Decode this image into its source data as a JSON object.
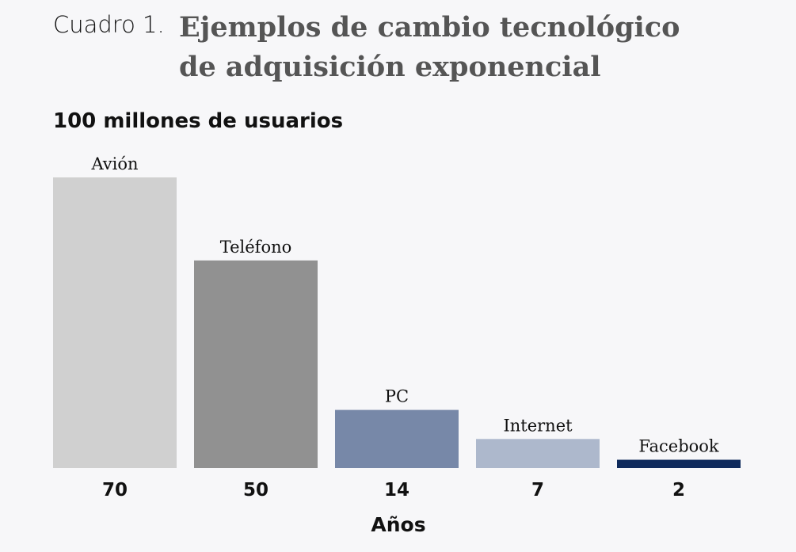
{
  "header": {
    "prefix": "Cuadro 1.",
    "title_line1": "Ejemplos de cambio tecnológico",
    "title_line2": "de adquisición exponencial"
  },
  "chart_data": {
    "type": "bar",
    "title": "Ejemplos de cambio tecnológico de adquisición exponencial",
    "subtitle": "100 millones de usuarios",
    "xlabel": "Años",
    "ylabel": "",
    "ylim": [
      0,
      70
    ],
    "grid": false,
    "categories": [
      "Avión",
      "Teléfono",
      "PC",
      "Internet",
      "Facebook"
    ],
    "values": [
      70,
      50,
      14,
      7,
      2
    ],
    "colors": [
      "#d0d0d0",
      "#919191",
      "#7788a8",
      "#adb8cc",
      "#0f2a5c"
    ]
  }
}
